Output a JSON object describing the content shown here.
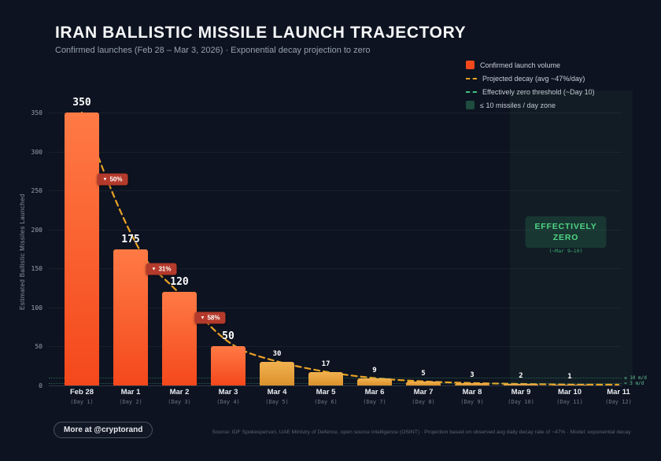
{
  "header": {
    "title": "IRAN BALLISTIC MISSILE LAUNCH TRAJECTORY",
    "subtitle": "Confirmed launches (Feb 28 – Mar 3, 2026) · Exponential decay projection to zero"
  },
  "legend": {
    "items": [
      {
        "kind": "bar-confirmed",
        "label": "Confirmed launch volume"
      },
      {
        "kind": "dash-orange",
        "label": "Projected decay (avg ~47%/day)"
      },
      {
        "kind": "dash-green",
        "label": "Effectively zero threshold (~Day 10)"
      },
      {
        "kind": "zone-green",
        "label": "≤ 10 missiles / day zone"
      }
    ]
  },
  "chart_data": {
    "type": "bar",
    "title": "IRAN BALLISTIC MISSILE LAUNCH TRAJECTORY",
    "ylabel": "Estimated Ballistic Missiles Launched",
    "ylim": [
      0,
      350
    ],
    "yticks": [
      0,
      50,
      100,
      150,
      200,
      250,
      300,
      350
    ],
    "grid": "horizontal",
    "legend_position": "top-right",
    "categories": [
      "Feb 28",
      "Mar 1",
      "Mar 2",
      "Mar 3",
      "Mar 4",
      "Mar 5",
      "Mar 6",
      "Mar 7",
      "Mar 8",
      "Mar 9",
      "Mar 10",
      "Mar 11"
    ],
    "day_labels": [
      "(Day 1)",
      "(Day 2)",
      "(Day 3)",
      "(Day 4)",
      "(Day 5)",
      "(Day 6)",
      "(Day 7)",
      "(Day 8)",
      "(Day 9)",
      "(Day 10)",
      "(Day 11)",
      "(Day 12)"
    ],
    "values": [
      350,
      175,
      120,
      50,
      30,
      17,
      9,
      5,
      3,
      2,
      1,
      0
    ],
    "bar_types": [
      "confirmed",
      "confirmed",
      "confirmed",
      "confirmed",
      "projected",
      "projected",
      "projected",
      "projected",
      "projected",
      "projected",
      "projected",
      "projected"
    ],
    "decline_badges": [
      {
        "between": [
          0,
          1
        ],
        "label": "50%"
      },
      {
        "between": [
          1,
          2
        ],
        "label": "31%"
      },
      {
        "between": [
          2,
          3
        ],
        "label": "58%"
      }
    ],
    "thresholds": [
      {
        "value": 10,
        "label": "≤ 10 m/d"
      },
      {
        "value": 3,
        "label": "≈ 3 m/d"
      }
    ],
    "zone": {
      "start_category": "Mar 9",
      "start_index": 9
    },
    "annotations": {
      "effectively_zero": {
        "line1": "EFFECTIVELY",
        "line2": "ZERO",
        "sub": "(~Mar 9–10)"
      }
    }
  },
  "colors": {
    "background": "#0d1320",
    "confirmed_bar_top": "#ff7a45",
    "confirmed_bar_bottom": "#f4481c",
    "projected_bar_top": "#f2b250",
    "projected_bar_bottom": "#da912b",
    "decay_line": "#e8a226",
    "threshold_green": "#41c27e",
    "badge_red": "#b43a2b",
    "zone_green": "#2e7d5b"
  },
  "footer": {
    "cta": "More at @cryptorand",
    "source": "Source: IDF Spokesperson, UAE Ministry of Defence, open source intelligence (OSINT) · Projection based on observed avg daily decay rate of ~47% · Model: exponential decay"
  }
}
